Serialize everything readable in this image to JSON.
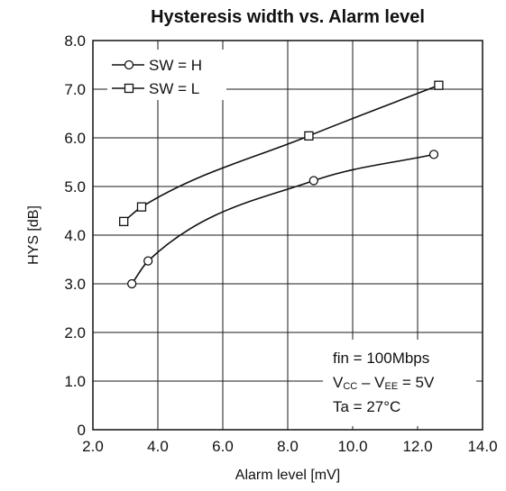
{
  "chart_data": {
    "type": "line",
    "title": "Hysteresis width vs. Alarm level",
    "xlabel": "Alarm level [mV]",
    "ylabel": "HYS [dB]",
    "xlim": [
      2.0,
      14.0
    ],
    "ylim": [
      0,
      8.0
    ],
    "x_ticks": [
      "2.0",
      "4.0",
      "6.0",
      "8.0",
      "10.0",
      "12.0",
      "14.0"
    ],
    "y_ticks": [
      "0",
      "1.0",
      "2.0",
      "3.0",
      "4.0",
      "5.0",
      "6.0",
      "7.0",
      "8.0"
    ],
    "grid": true,
    "legend_position": "top-left",
    "series": [
      {
        "name": "SW = H",
        "marker": "circle",
        "x": [
          3.2,
          3.7,
          8.8,
          12.5
        ],
        "y": [
          3.0,
          3.47,
          5.12,
          5.66
        ]
      },
      {
        "name": "SW = L",
        "marker": "square",
        "x": [
          2.95,
          3.5,
          8.65,
          12.65
        ],
        "y": [
          4.28,
          4.58,
          6.04,
          7.08
        ]
      }
    ],
    "annotations": [
      "fin = 100Mbps",
      "VCC – VEE = 5V",
      "Ta = 27°C"
    ]
  }
}
